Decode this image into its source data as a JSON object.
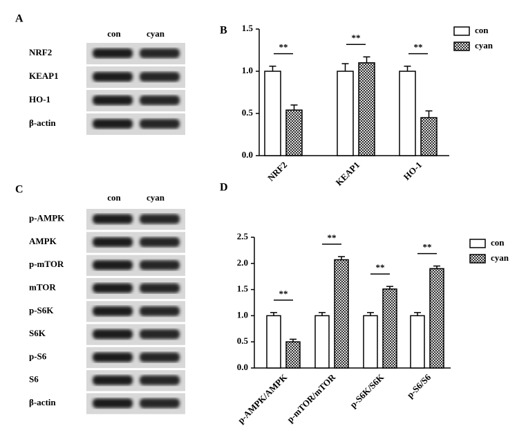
{
  "panels": [
    {
      "label": "A",
      "columns": [
        "con",
        "cyan"
      ],
      "rows": [
        "NRF2",
        "KEAP1",
        "HO-1",
        "β-actin"
      ]
    },
    {
      "label": "C",
      "columns": [
        "con",
        "cyan"
      ],
      "rows": [
        "p-AMPK",
        "AMPK",
        "p-mTOR",
        "mTOR",
        "p-S6K",
        "S6K",
        "p-S6",
        "S6",
        "β-actin"
      ]
    }
  ],
  "chart_data": [
    {
      "type": "bar",
      "panel_label": "B",
      "categories": [
        "NRF2",
        "KEAP1",
        "HO-1"
      ],
      "series": [
        {
          "name": "con",
          "color": "#ffffff",
          "pattern": "solid",
          "values": [
            1.0,
            1.0,
            1.0
          ],
          "errors": [
            0.06,
            0.09,
            0.06
          ]
        },
        {
          "name": "cyan",
          "color": "#888888",
          "pattern": "checker",
          "values": [
            0.54,
            1.1,
            0.45
          ],
          "errors": [
            0.06,
            0.07,
            0.08
          ]
        }
      ],
      "annotations": [
        "**",
        "**",
        "**"
      ],
      "ylim": [
        0,
        1.5
      ],
      "yticks": [
        {
          "value": 0,
          "label": "0.0"
        },
        {
          "value": 0.5,
          "label": "0.5"
        },
        {
          "value": 1,
          "label": "1.0"
        },
        {
          "value": 1.5,
          "label": "1.5"
        }
      ],
      "legend": "top-right"
    },
    {
      "type": "bar",
      "panel_label": "D",
      "categories": [
        "p-AMPK/AMPK",
        "p-mTOR/mTOR",
        "p-S6K/S6K",
        "p-S6/S6"
      ],
      "series": [
        {
          "name": "con",
          "color": "#ffffff",
          "pattern": "solid",
          "values": [
            1.0,
            1.0,
            1.0,
            1.0
          ],
          "errors": [
            0.06,
            0.06,
            0.06,
            0.06
          ]
        },
        {
          "name": "cyan",
          "color": "#888888",
          "pattern": "checker",
          "values": [
            0.5,
            2.07,
            1.51,
            1.9
          ],
          "errors": [
            0.05,
            0.06,
            0.05,
            0.05
          ]
        }
      ],
      "annotations": [
        "**",
        "**",
        "**",
        "**"
      ],
      "ylim": [
        0,
        2.5
      ],
      "yticks": [
        {
          "value": 0,
          "label": "0.0"
        },
        {
          "value": 0.5,
          "label": "0.5"
        },
        {
          "value": 1,
          "label": "1.0"
        },
        {
          "value": 1.5,
          "label": "1.5"
        },
        {
          "value": 2,
          "label": "2.0"
        },
        {
          "value": 2.5,
          "label": "2.5"
        }
      ],
      "legend": "top-right"
    }
  ]
}
